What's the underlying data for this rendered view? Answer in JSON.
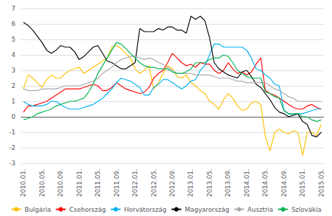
{
  "chart_data": {
    "type": "line",
    "categories": [
      "2010.01.",
      null,
      null,
      null,
      "2010.05.",
      null,
      null,
      null,
      "2010.09.",
      null,
      null,
      null,
      "2011.01.",
      null,
      null,
      null,
      "2011.05.",
      null,
      null,
      null,
      "2011.09.",
      null,
      null,
      null,
      "2012.01.",
      null,
      null,
      null,
      "2012.05.",
      null,
      null,
      null,
      "2012.09.",
      null,
      null,
      null,
      "2013.01.",
      null,
      null,
      null,
      "2013.05.",
      null,
      null,
      null,
      "2013.09.",
      null,
      null,
      null,
      "2014.01.",
      null,
      null,
      null,
      "2014.05.",
      null,
      null,
      null,
      "2014.09.",
      null,
      null,
      null,
      "2015.01.",
      null,
      null,
      null,
      "2015.05."
    ],
    "series": [
      {
        "name": "Bulgária",
        "color": "#FFC000",
        "values": [
          1.8,
          2.7,
          2.5,
          2.2,
          1.9,
          2.4,
          2.7,
          2.5,
          2.5,
          2.8,
          3.0,
          3.1,
          3.2,
          2.8,
          3.0,
          3.2,
          3.4,
          3.6,
          3.8,
          4.5,
          4.6,
          4.4,
          4.1,
          3.8,
          3.1,
          2.8,
          3.0,
          3.3,
          1.8,
          2.2,
          2.8,
          3.3,
          3.1,
          2.6,
          2.5,
          2.7,
          2.2,
          2.0,
          1.7,
          1.5,
          1.0,
          0.8,
          0.5,
          1.1,
          1.5,
          1.2,
          0.7,
          0.4,
          0.5,
          0.9,
          1.0,
          0.8,
          -1.3,
          -2.2,
          -1.0,
          -0.8,
          -1.0,
          -1.1,
          -0.9,
          -1.0,
          -2.5,
          -1.0,
          -1.0,
          -1.2,
          -0.5
        ]
      },
      {
        "name": "Csehország",
        "color": "#FF0000",
        "values": [
          0.3,
          0.7,
          0.7,
          0.8,
          0.9,
          1.0,
          1.2,
          1.4,
          1.6,
          1.8,
          1.8,
          1.8,
          1.8,
          1.9,
          2.0,
          2.1,
          2.0,
          1.7,
          1.7,
          1.9,
          2.2,
          2.0,
          1.8,
          1.7,
          1.6,
          1.5,
          1.6,
          1.9,
          2.5,
          2.8,
          3.0,
          3.5,
          4.1,
          3.8,
          3.5,
          3.3,
          3.4,
          3.2,
          3.5,
          3.4,
          3.4,
          3.0,
          2.8,
          3.0,
          3.5,
          3.1,
          2.8,
          2.9,
          2.7,
          2.9,
          3.4,
          3.8,
          1.7,
          1.5,
          1.4,
          1.2,
          1.0,
          0.8,
          0.6,
          0.5,
          0.5,
          0.7,
          0.8,
          0.6,
          0.5
        ]
      },
      {
        "name": "Horvátország",
        "color": "#00B0F0",
        "values": [
          1.0,
          0.8,
          0.7,
          0.7,
          0.7,
          0.8,
          1.0,
          1.0,
          0.8,
          0.6,
          0.5,
          0.5,
          0.5,
          0.6,
          0.7,
          0.8,
          1.0,
          1.2,
          1.5,
          1.8,
          2.2,
          2.5,
          2.4,
          2.3,
          2.1,
          1.9,
          1.4,
          1.4,
          1.9,
          2.1,
          2.4,
          2.4,
          2.2,
          2.0,
          1.8,
          2.0,
          2.3,
          2.4,
          3.0,
          3.3,
          4.0,
          4.7,
          4.7,
          4.5,
          4.5,
          4.5,
          4.5,
          4.5,
          4.3,
          3.8,
          3.1,
          3.0,
          2.7,
          2.5,
          2.1,
          2.0,
          0.4,
          0.2,
          0.1,
          0.2,
          0.2,
          0.3,
          0.4,
          0.5,
          0.5
        ]
      },
      {
        "name": "Magyarország",
        "color": "#000000",
        "values": [
          6.1,
          5.9,
          5.6,
          5.2,
          4.8,
          4.3,
          4.1,
          4.3,
          4.6,
          4.5,
          4.5,
          4.2,
          3.7,
          3.9,
          4.2,
          4.5,
          4.6,
          4.1,
          3.6,
          3.5,
          3.3,
          3.1,
          3.1,
          3.3,
          3.5,
          5.7,
          5.5,
          5.5,
          5.5,
          5.7,
          5.6,
          5.8,
          5.8,
          5.6,
          5.6,
          5.4,
          6.5,
          6.3,
          6.5,
          6.2,
          5.1,
          3.5,
          3.1,
          2.9,
          2.7,
          2.6,
          2.5,
          2.9,
          3.0,
          2.6,
          2.1,
          1.9,
          1.5,
          1.1,
          0.6,
          0.3,
          0.2,
          0.0,
          0.1,
          0.2,
          -0.3,
          -0.5,
          -1.2,
          -1.3,
          -1.0
        ]
      },
      {
        "name": "Ausztria",
        "color": "#AAAAAA",
        "values": [
          1.8,
          1.7,
          1.7,
          1.7,
          1.8,
          1.8,
          1.8,
          1.8,
          1.9,
          2.0,
          2.0,
          2.0,
          2.0,
          2.1,
          2.2,
          2.3,
          2.5,
          2.8,
          3.0,
          3.2,
          3.5,
          3.7,
          3.8,
          3.9,
          3.9,
          3.8,
          3.7,
          3.8,
          3.7,
          3.5,
          3.4,
          3.2,
          3.0,
          2.8,
          2.8,
          2.8,
          2.8,
          2.7,
          2.7,
          2.7,
          2.7,
          2.6,
          2.5,
          2.5,
          2.5,
          2.4,
          2.3,
          2.3,
          2.2,
          2.2,
          2.2,
          2.2,
          2.2,
          2.0,
          1.8,
          1.7,
          1.5,
          1.3,
          1.2,
          1.0,
          1.0,
          1.0,
          1.0,
          1.0,
          1.0
        ]
      },
      {
        "name": "Szlovákia",
        "color": "#00B050",
        "values": [
          -0.2,
          -0.1,
          0.0,
          0.2,
          0.3,
          0.4,
          0.5,
          0.7,
          0.8,
          0.9,
          1.0,
          1.0,
          1.1,
          1.2,
          1.6,
          2.1,
          2.8,
          3.3,
          3.8,
          4.3,
          4.8,
          4.7,
          4.4,
          4.1,
          3.8,
          3.5,
          3.3,
          3.2,
          3.2,
          3.1,
          3.1,
          3.1,
          2.9,
          2.8,
          2.8,
          2.9,
          3.1,
          3.5,
          3.5,
          3.5,
          3.7,
          3.8,
          3.8,
          4.0,
          3.9,
          3.5,
          3.0,
          2.8,
          2.6,
          2.5,
          2.5,
          2.5,
          1.6,
          1.5,
          1.3,
          1.2,
          0.4,
          0.2,
          0.2,
          0.2,
          0.0,
          0.0,
          -0.2,
          -0.3,
          -0.2
        ]
      }
    ],
    "ylim": [
      -3,
      7
    ],
    "yticks": [
      -3,
      -2,
      -1,
      0,
      1,
      2,
      3,
      4,
      5,
      6,
      7
    ],
    "grid": true,
    "legend": "bottom"
  }
}
